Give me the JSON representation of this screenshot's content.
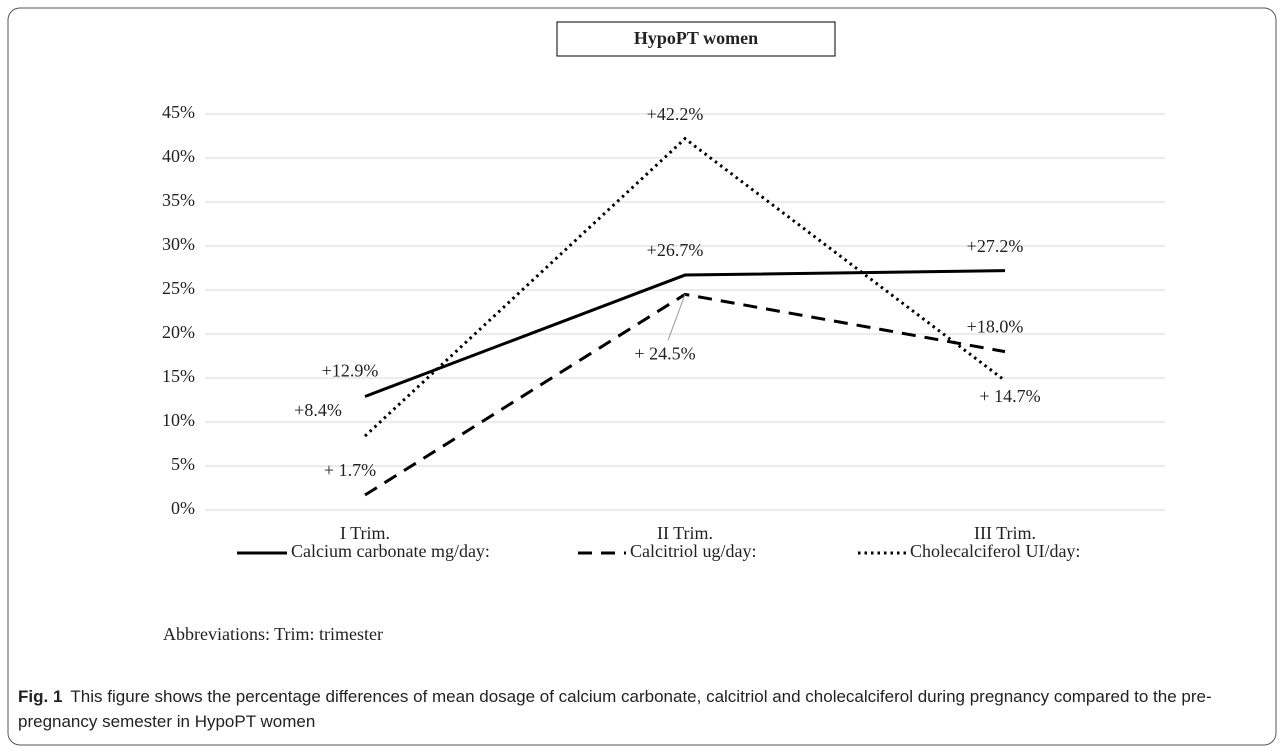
{
  "chart_data": {
    "type": "line",
    "title": "HypoPT women",
    "categories": [
      "I Trim.",
      "II Trim.",
      "III Trim."
    ],
    "series": [
      {
        "name": "Calcium carbonate mg/day:",
        "color": "#000000",
        "style": "solid",
        "values": [
          12.9,
          26.7,
          27.2
        ],
        "value_labels": [
          "+12.9%",
          "+26.7%",
          "+27.2%"
        ]
      },
      {
        "name": "Calcitriol ug/day:",
        "color": "#000000",
        "style": "dashed",
        "values": [
          1.7,
          24.5,
          18.0
        ],
        "value_labels": [
          "+ 1.7%",
          "+ 24.5%",
          "+18.0%"
        ]
      },
      {
        "name": "Cholecalciferol UI/day:",
        "color": "#000000",
        "style": "dotted",
        "values": [
          8.4,
          42.2,
          14.7
        ],
        "value_labels": [
          "+8.4%",
          "+42.2%",
          "+ 14.7%"
        ]
      }
    ],
    "ylim": [
      0,
      45
    ],
    "yticks": [
      {
        "value": 0,
        "label": "0%"
      },
      {
        "value": 5,
        "label": "5%"
      },
      {
        "value": 10,
        "label": "10%"
      },
      {
        "value": 15,
        "label": "15%"
      },
      {
        "value": 20,
        "label": "20%"
      },
      {
        "value": 25,
        "label": "25%"
      },
      {
        "value": 30,
        "label": "30%"
      },
      {
        "value": 35,
        "label": "35%"
      },
      {
        "value": 40,
        "label": "40%"
      },
      {
        "value": 45,
        "label": "45%"
      }
    ],
    "grid": true,
    "legend": "bottom",
    "note": "Abbreviations: Trim: trimester",
    "caption_label": "Fig. 1",
    "caption": "This figure shows the percentage differences of mean dosage of calcium carbonate, calcitriol and cholecalciferol during pregnancy compared to the pre-pregnancy semester in HypoPT women"
  }
}
